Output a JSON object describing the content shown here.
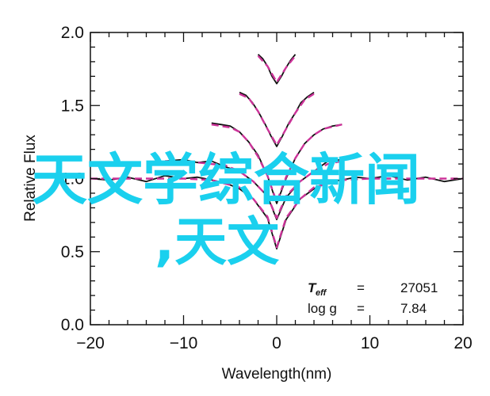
{
  "chart_data": {
    "type": "line",
    "xlabel": "Wavelength(nm)",
    "ylabel": "Relative Flux",
    "xlim": [
      -20,
      20
    ],
    "ylim": [
      0.0,
      2.0
    ],
    "xticks": [
      "−20",
      "−10",
      "0",
      "10",
      "20"
    ],
    "yticks": [
      "0.0",
      "0.5",
      "1.0",
      "1.5",
      "2.0"
    ],
    "grid": false,
    "annotations": {
      "teff_label": "T",
      "teff_sub": "eff",
      "teff_eq": "=",
      "teff_value": "27051",
      "logg_label": "log g",
      "logg_eq": "=",
      "logg_value": "7.84"
    },
    "series": [
      {
        "style": "observed",
        "color": "#111111",
        "segments": [
          {
            "x": [
              -20,
              -18,
              -16,
              -14,
              -12,
              -10,
              -8.5,
              -7,
              -5.5,
              -4,
              -2.5,
              -1,
              0,
              1,
              2.5,
              4,
              5.5,
              7,
              8.5,
              10,
              12,
              14,
              16,
              18,
              20
            ],
            "y": [
              1.0,
              0.99,
              1.01,
              0.98,
              1.02,
              1.0,
              1.01,
              0.99,
              0.97,
              0.93,
              0.86,
              0.73,
              0.52,
              0.72,
              0.86,
              0.93,
              0.98,
              0.99,
              1.01,
              1.0,
              1.02,
              0.99,
              1.01,
              0.98,
              1.0
            ]
          },
          {
            "x": [
              -12,
              -10,
              -8.5,
              -7,
              -5.5,
              -4,
              -2.5,
              -1,
              0,
              1,
              2.5,
              4,
              5.5,
              7
            ],
            "y": [
              1.12,
              1.13,
              1.11,
              1.12,
              1.08,
              1.05,
              0.98,
              0.88,
              0.72,
              0.87,
              0.98,
              1.05,
              1.12,
              1.13
            ]
          },
          {
            "x": [
              -7,
              -6,
              -5,
              -4,
              -3,
              -2,
              -1,
              0,
              1,
              2,
              3,
              4,
              5,
              6,
              7
            ],
            "y": [
              1.38,
              1.37,
              1.36,
              1.32,
              1.25,
              1.16,
              1.02,
              0.83,
              1.0,
              1.14,
              1.24,
              1.3,
              1.34,
              1.36,
              1.37
            ]
          },
          {
            "x": [
              -4,
              -3.3,
              -2.6,
              -2,
              -1.3,
              -0.6,
              0,
              0.6,
              1.3,
              2,
              2.6,
              3.3,
              4
            ],
            "y": [
              1.59,
              1.57,
              1.52,
              1.46,
              1.38,
              1.29,
              1.22,
              1.29,
              1.38,
              1.45,
              1.52,
              1.56,
              1.59
            ]
          },
          {
            "x": [
              -2,
              -1.5,
              -1,
              -0.5,
              0,
              0.5,
              1,
              1.5,
              2
            ],
            "y": [
              1.85,
              1.82,
              1.77,
              1.7,
              1.65,
              1.7,
              1.76,
              1.81,
              1.85
            ]
          }
        ]
      },
      {
        "style": "model",
        "color": "#cc3399",
        "segments": [
          {
            "x": [
              -20,
              -14,
              -10,
              -7,
              -4,
              -2.5,
              -1,
              0,
              1,
              2.5,
              4,
              7,
              10,
              14,
              20
            ],
            "y": [
              1.0,
              1.0,
              1.0,
              0.99,
              0.94,
              0.86,
              0.74,
              0.53,
              0.73,
              0.86,
              0.94,
              0.99,
              1.0,
              1.0,
              1.0
            ]
          },
          {
            "x": [
              -12,
              -8.5,
              -5.5,
              -4,
              -2.5,
              -1,
              0,
              1,
              2.5,
              4,
              5.5,
              7
            ],
            "y": [
              1.12,
              1.11,
              1.09,
              1.05,
              0.98,
              0.88,
              0.73,
              0.88,
              0.98,
              1.05,
              1.1,
              1.12
            ]
          },
          {
            "x": [
              -7,
              -5,
              -4,
              -3,
              -2,
              -1,
              0,
              1,
              2,
              3,
              4,
              5,
              7
            ],
            "y": [
              1.37,
              1.35,
              1.32,
              1.25,
              1.15,
              1.02,
              0.84,
              1.01,
              1.14,
              1.24,
              1.3,
              1.34,
              1.37
            ]
          },
          {
            "x": [
              -4,
              -3,
              -2,
              -1,
              0,
              1,
              2,
              3,
              4
            ],
            "y": [
              1.58,
              1.55,
              1.46,
              1.34,
              1.23,
              1.34,
              1.45,
              1.54,
              1.58
            ]
          },
          {
            "x": [
              -2,
              -1,
              0,
              1,
              2
            ],
            "y": [
              1.84,
              1.77,
              1.66,
              1.76,
              1.84
            ]
          }
        ]
      }
    ]
  },
  "watermark": {
    "line1": "天文学综合新闻",
    "line2": ",天文",
    "color": "#1ad0ee"
  }
}
